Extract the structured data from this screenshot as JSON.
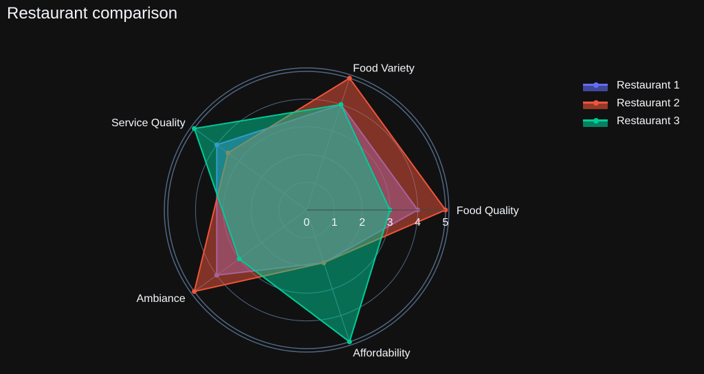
{
  "chart_data": {
    "type": "radar",
    "title": "Restaurant comparison",
    "categories": [
      "Food Quality",
      "Food Variety",
      "Service Quality",
      "Ambiance",
      "Affordability"
    ],
    "radial_range": [
      0,
      5
    ],
    "radial_ticks": [
      "0",
      "1",
      "2",
      "3",
      "4",
      "5"
    ],
    "legend_position": "top-right",
    "series": [
      {
        "name": "Restaurant 1",
        "values": [
          4,
          4,
          4,
          4,
          2
        ],
        "color": "#636efa"
      },
      {
        "name": "Restaurant 2",
        "values": [
          5,
          5,
          3.5,
          5,
          2
        ],
        "color": "#ef553b"
      },
      {
        "name": "Restaurant 3",
        "values": [
          3,
          4,
          5,
          3,
          5
        ],
        "color": "#00cc96"
      }
    ]
  },
  "colors": {
    "background": "#111111",
    "grid": "#506784",
    "text": "#f2f5fa"
  }
}
